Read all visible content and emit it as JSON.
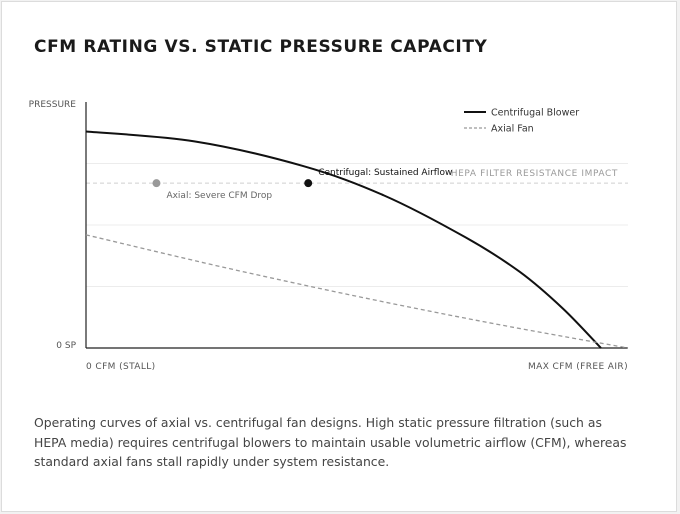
{
  "chart_data": {
    "type": "line",
    "title": "CFM RATING VS. STATIC PRESSURE CAPACITY",
    "ylabel": "PRESSURE",
    "y_zero_label": "0 SP",
    "x_tick_labels": [
      "0 CFM (STALL)",
      "MAX CFM (FREE AIR)"
    ],
    "xlim": [
      0,
      100
    ],
    "ylim": [
      0,
      100
    ],
    "grid": true,
    "legend_position": "top-right",
    "series": [
      {
        "name": "Centrifugal Blower",
        "style": "solid",
        "color": "#111111",
        "x": [
          0,
          20,
          40,
          55,
          70,
          80,
          88,
          95
        ],
        "y": [
          88,
          84,
          74,
          62,
          45,
          31,
          16,
          0
        ]
      },
      {
        "name": "Axial Fan",
        "style": "dashed",
        "color": "#999999",
        "x": [
          0,
          25,
          50,
          75,
          100
        ],
        "y": [
          46,
          33,
          21,
          10,
          0
        ]
      }
    ],
    "reference_line": {
      "label": "HEPA FILTER RESISTANCE IMPACT",
      "y": 67
    },
    "annotations": [
      {
        "label": "Centrifugal: Sustained Airflow",
        "x": 41,
        "y": 67,
        "color": "#111111"
      },
      {
        "label": "Axial: Severe CFM Drop",
        "x": 13,
        "y": 67,
        "color": "#999999"
      }
    ]
  },
  "caption": "Operating curves of axial vs. centrifugal fan designs. High static pressure filtration (such as HEPA media) requires centrifugal blowers to maintain usable volumetric airflow (CFM), whereas standard axial fans stall rapidly under system resistance."
}
